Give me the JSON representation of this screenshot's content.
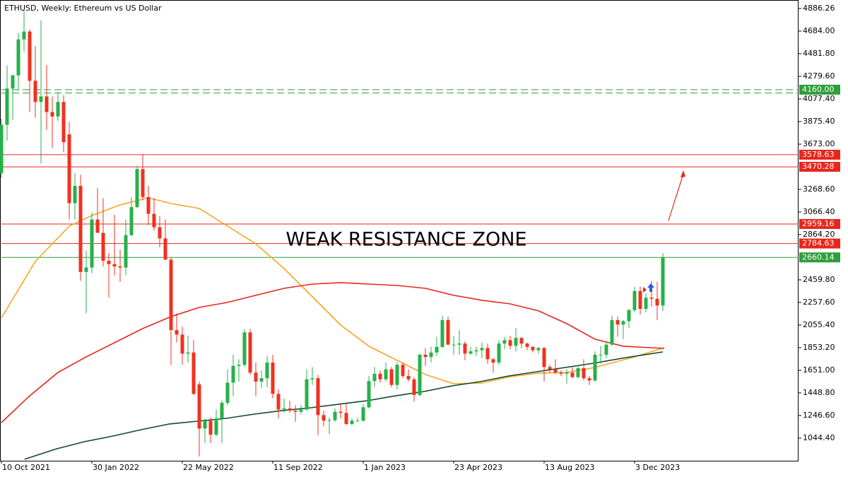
{
  "chart_data": {
    "type": "candlestick",
    "title": "ETHUSD, Weekly:  Ethereum vs US Dollar",
    "annotation": "WEAK RESISTANCE ZONE",
    "up_color": "#26b14a",
    "down_color": "#f2301f",
    "ylim": [
      842,
      4962
    ],
    "yticks": [
      {
        "value": 4886.26,
        "label": "4886.26"
      },
      {
        "value": 4684.0,
        "label": "4684.00"
      },
      {
        "value": 4481.8,
        "label": "4481.80"
      },
      {
        "value": 4279.6,
        "label": "4279.60"
      },
      {
        "value": 4077.4,
        "label": "4077.40"
      },
      {
        "value": 3875.4,
        "label": "3875.40"
      },
      {
        "value": 3673.0,
        "label": "3673.00"
      },
      {
        "value": 3268.6,
        "label": "3268.60"
      },
      {
        "value": 3066.4,
        "label": "3066.40"
      },
      {
        "value": 2864.2,
        "label": "2864.20"
      },
      {
        "value": 2459.8,
        "label": "2459.80"
      },
      {
        "value": 2257.6,
        "label": "2257.60"
      },
      {
        "value": 2055.4,
        "label": "2055.40"
      },
      {
        "value": 1853.2,
        "label": "1853.20"
      },
      {
        "value": 1651.0,
        "label": "1651.00"
      },
      {
        "value": 1448.8,
        "label": "1448.80"
      },
      {
        "value": 1246.6,
        "label": "1246.60"
      },
      {
        "value": 1044.4,
        "label": "1044.40"
      }
    ],
    "categories": [
      "10 Oct 2021",
      null,
      null,
      null,
      null,
      null,
      null,
      null,
      null,
      null,
      null,
      null,
      null,
      null,
      null,
      null,
      "30 Jan 2022",
      null,
      null,
      null,
      null,
      null,
      null,
      null,
      null,
      null,
      null,
      null,
      null,
      null,
      null,
      null,
      "22 May 2022",
      null,
      null,
      null,
      null,
      null,
      null,
      null,
      null,
      null,
      null,
      null,
      null,
      null,
      null,
      null,
      "11 Sep 2022",
      null,
      null,
      null,
      null,
      null,
      null,
      null,
      null,
      null,
      null,
      null,
      null,
      null,
      null,
      null,
      "1 Jan 2023",
      null,
      null,
      null,
      null,
      null,
      null,
      null,
      null,
      null,
      null,
      null,
      null,
      null,
      null,
      null,
      "23 Apr 2023",
      null,
      null,
      null,
      null,
      null,
      null,
      null,
      null,
      null,
      null,
      null,
      null,
      null,
      null,
      null,
      "13 Aug 2023",
      null,
      null,
      null,
      null,
      null,
      null,
      null,
      null,
      null,
      null,
      null,
      null,
      null,
      null,
      null,
      "3 Dec 2023",
      null,
      null,
      null,
      null,
      null
    ],
    "ohlc": [
      [
        3414,
        3900,
        3372,
        3846
      ],
      [
        3846,
        4377,
        3705,
        4170
      ],
      [
        4170,
        4296,
        3890,
        4288
      ],
      [
        4288,
        4665,
        4150,
        4610
      ],
      [
        4610,
        4870,
        4500,
        4680
      ],
      [
        4680,
        4700,
        3960,
        4240
      ],
      [
        4240,
        4550,
        3910,
        4050
      ],
      [
        4050,
        4780,
        3500,
        4100
      ],
      [
        4100,
        4380,
        3800,
        3960
      ],
      [
        3960,
        4100,
        3640,
        3920
      ],
      [
        3920,
        4140,
        3880,
        4050
      ],
      [
        4050,
        4110,
        3600,
        3690
      ],
      [
        3760,
        3870,
        3000,
        3145
      ],
      [
        3145,
        3413,
        3000,
        3300
      ],
      [
        3300,
        3400,
        2450,
        2530
      ],
      [
        2530,
        2720,
        2160,
        2570
      ],
      [
        2570,
        3060,
        2520,
        3000
      ],
      [
        3000,
        3280,
        2900,
        2880
      ],
      [
        2880,
        3190,
        2580,
        2630
      ],
      [
        2630,
        2700,
        2300,
        2600
      ],
      [
        2600,
        3040,
        2500,
        2580
      ],
      [
        2580,
        2730,
        2440,
        2570
      ],
      [
        2570,
        3000,
        2500,
        2860
      ],
      [
        2860,
        3200,
        2850,
        3110
      ],
      [
        3110,
        3480,
        3100,
        3450
      ],
      [
        3450,
        3580,
        3170,
        3200
      ],
      [
        3200,
        3300,
        2950,
        3050
      ],
      [
        3050,
        3190,
        2900,
        2930
      ],
      [
        2930,
        3030,
        2750,
        2830
      ],
      [
        2830,
        3000,
        2650,
        2640
      ],
      [
        2640,
        2660,
        1700,
        2010
      ],
      [
        2010,
        2160,
        1900,
        1970
      ],
      [
        1970,
        2040,
        1700,
        1800
      ],
      [
        1800,
        1960,
        1720,
        1810
      ],
      [
        1810,
        1920,
        1430,
        1440
      ],
      [
        1525,
        1550,
        880,
        1130
      ],
      [
        1130,
        1220,
        1000,
        1200
      ],
      [
        1200,
        1230,
        1000,
        1075
      ],
      [
        1075,
        1300,
        1060,
        1220
      ],
      [
        1220,
        1380,
        1000,
        1360
      ],
      [
        1360,
        1660,
        1340,
        1540
      ],
      [
        1540,
        1790,
        1420,
        1690
      ],
      [
        1690,
        1750,
        1550,
        1700
      ],
      [
        1700,
        2020,
        1680,
        1990
      ],
      [
        1990,
        2020,
        1610,
        1630
      ],
      [
        1630,
        1720,
        1420,
        1550
      ],
      [
        1550,
        1650,
        1490,
        1580
      ],
      [
        1580,
        1780,
        1500,
        1720
      ],
      [
        1720,
        1790,
        1400,
        1440
      ],
      [
        1440,
        1480,
        1220,
        1300
      ],
      [
        1300,
        1400,
        1270,
        1310
      ],
      [
        1310,
        1380,
        1270,
        1290
      ],
      [
        1290,
        1340,
        1190,
        1280
      ],
      [
        1280,
        1340,
        1260,
        1300
      ],
      [
        1300,
        1660,
        1290,
        1570
      ],
      [
        1570,
        1680,
        1520,
        1580
      ],
      [
        1580,
        1610,
        1070,
        1250
      ],
      [
        1250,
        1290,
        1150,
        1200
      ],
      [
        1200,
        1230,
        1080,
        1205
      ],
      [
        1205,
        1310,
        1190,
        1280
      ],
      [
        1280,
        1350,
        1220,
        1270
      ],
      [
        1270,
        1350,
        1160,
        1170
      ],
      [
        1170,
        1220,
        1160,
        1200
      ],
      [
        1200,
        1230,
        1190,
        1200
      ],
      [
        1200,
        1350,
        1190,
        1320
      ],
      [
        1320,
        1600,
        1310,
        1555
      ],
      [
        1555,
        1680,
        1500,
        1620
      ],
      [
        1620,
        1650,
        1540,
        1570
      ],
      [
        1570,
        1720,
        1550,
        1660
      ],
      [
        1660,
        1680,
        1500,
        1520
      ],
      [
        1520,
        1720,
        1480,
        1700
      ],
      [
        1700,
        1720,
        1580,
        1600
      ],
      [
        1600,
        1660,
        1550,
        1570
      ],
      [
        1570,
        1590,
        1370,
        1430
      ],
      [
        1430,
        1800,
        1420,
        1790
      ],
      [
        1790,
        1850,
        1690,
        1770
      ],
      [
        1770,
        1860,
        1720,
        1810
      ],
      [
        1810,
        1950,
        1780,
        1860
      ],
      [
        1860,
        2140,
        1850,
        2100
      ],
      [
        2100,
        2130,
        1880,
        1880
      ],
      [
        1880,
        1960,
        1790,
        1880
      ],
      [
        1880,
        2010,
        1790,
        1890
      ],
      [
        1890,
        1910,
        1740,
        1800
      ],
      [
        1800,
        1860,
        1790,
        1820
      ],
      [
        1820,
        1860,
        1780,
        1830
      ],
      [
        1830,
        1900,
        1760,
        1850
      ],
      [
        1850,
        1890,
        1710,
        1750
      ],
      [
        1750,
        1760,
        1630,
        1720
      ],
      [
        1720,
        1920,
        1700,
        1890
      ],
      [
        1890,
        1950,
        1840,
        1920
      ],
      [
        1920,
        1960,
        1840,
        1870
      ],
      [
        1870,
        2030,
        1820,
        1940
      ],
      [
        1940,
        1950,
        1850,
        1890
      ],
      [
        1890,
        1900,
        1830,
        1860
      ],
      [
        1860,
        1870,
        1810,
        1830
      ],
      [
        1830,
        1860,
        1800,
        1850
      ],
      [
        1850,
        1860,
        1550,
        1680
      ],
      [
        1680,
        1700,
        1630,
        1660
      ],
      [
        1660,
        1750,
        1620,
        1630
      ],
      [
        1630,
        1650,
        1600,
        1620
      ],
      [
        1620,
        1660,
        1530,
        1630
      ],
      [
        1630,
        1680,
        1580,
        1590
      ],
      [
        1590,
        1700,
        1580,
        1670
      ],
      [
        1670,
        1750,
        1560,
        1580
      ],
      [
        1580,
        1600,
        1520,
        1560
      ],
      [
        1560,
        1820,
        1550,
        1790
      ],
      [
        1790,
        1870,
        1710,
        1790
      ],
      [
        1790,
        1900,
        1760,
        1880
      ],
      [
        1880,
        2140,
        1870,
        2100
      ],
      [
        2100,
        2130,
        1950,
        2060
      ],
      [
        2060,
        2100,
        1930,
        2090
      ],
      [
        2090,
        2200,
        2030,
        2190
      ],
      [
        2190,
        2400,
        2170,
        2360
      ],
      [
        2360,
        2400,
        2150,
        2200
      ],
      [
        2200,
        2340,
        2170,
        2300
      ],
      [
        2300,
        2450,
        2220,
        2290
      ],
      [
        2290,
        2440,
        2100,
        2230
      ],
      [
        2230,
        2700,
        2180,
        2660
      ]
    ],
    "lines": [
      {
        "color": "#f5a623",
        "x": [
          0,
          6,
          12,
          16,
          21,
          26,
          30,
          35,
          40,
          45,
          50,
          55,
          60,
          65,
          70,
          75,
          80,
          85,
          90,
          95,
          100,
          105,
          112,
          117.25
        ],
        "values": [
          2119,
          2624,
          2940,
          3035,
          3130,
          3193,
          3142,
          3098,
          2940,
          2782,
          2560,
          2308,
          2055,
          1866,
          1740,
          1613,
          1531,
          1537,
          1594,
          1625,
          1631,
          1676,
          1771,
          1853
        ]
      },
      {
        "color": "#e8261c",
        "x": [
          0,
          5,
          10,
          15,
          20,
          25,
          30,
          35,
          40,
          45,
          50,
          55,
          60,
          65,
          70,
          75,
          80,
          85,
          90,
          95,
          100,
          105,
          110,
          117.25
        ],
        "values": [
          1183,
          1423,
          1631,
          1771,
          1897,
          2024,
          2131,
          2213,
          2258,
          2321,
          2384,
          2422,
          2435,
          2422,
          2409,
          2384,
          2321,
          2277,
          2245,
          2182,
          2068,
          1929,
          1866,
          1847
        ]
      },
      {
        "color": "#0e4a2a",
        "x": [
          4.1,
          9.75,
          14.75,
          19.75,
          24.75,
          29.75,
          34.75,
          39.75,
          44.75,
          49.75,
          54.75,
          59.75,
          64.75,
          69.75,
          74.75,
          79.75,
          84.75,
          89.75,
          94.75,
          99.75,
          104.75,
          109.75,
          117
        ],
        "values": [
          855,
          949,
          1013,
          1063,
          1120,
          1171,
          1196,
          1221,
          1259,
          1291,
          1316,
          1348,
          1379,
          1423,
          1461,
          1512,
          1550,
          1600,
          1638,
          1676,
          1714,
          1758,
          1815
        ]
      }
    ],
    "levels": [
      {
        "price": {
          "value": 4160,
          "label": "4160.00"
        },
        "color": "#2e9e3a",
        "dashed": true,
        "tag": true
      },
      {
        "price": 4130,
        "color": "#2e9e3a",
        "dashed": true,
        "tag": false
      },
      {
        "price": 3578.63,
        "color": "#e8261c",
        "dashed": false,
        "tag": true
      },
      {
        "price": 3470.28,
        "color": "#e8261c",
        "dashed": false,
        "tag": true
      },
      {
        "price": 2959.16,
        "color": "#e8261c",
        "dashed": false,
        "tag": true
      },
      {
        "price": 2784.63,
        "color": "#e8261c",
        "dashed": false,
        "tag": true
      },
      {
        "price": 2660.14,
        "color": "#2e9e3a",
        "dashed": false,
        "tag": true
      }
    ]
  }
}
